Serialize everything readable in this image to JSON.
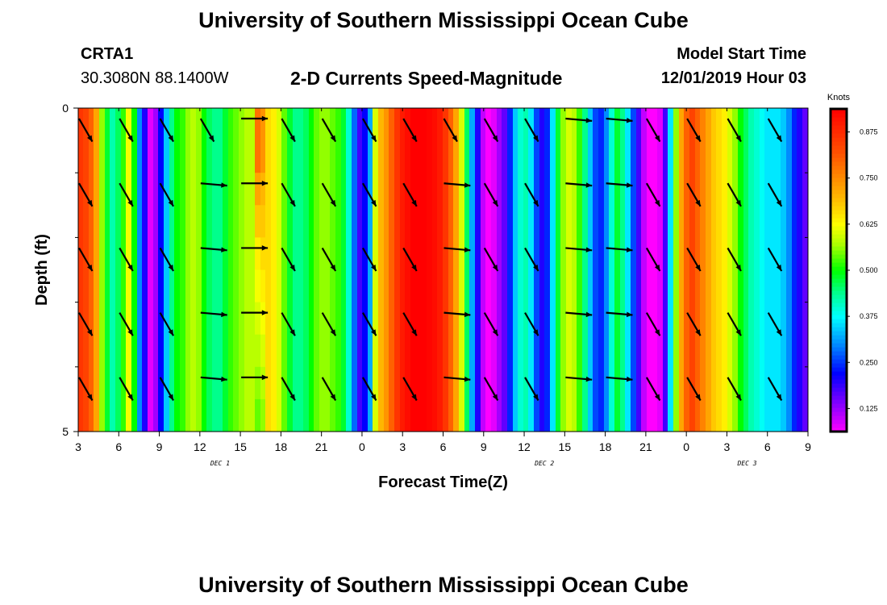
{
  "page": {
    "title_top": "University of Southern Mississippi Ocean Cube",
    "title_bottom": "University of Southern Mississippi Ocean Cube",
    "station": "CRTA1",
    "coords": "30.3080N 88.1400W",
    "subtitle": "2-D Currents Speed-Magnitude",
    "model_label": "Model Start Time",
    "model_time": "12/01/2019 Hour 03"
  },
  "chart_data": {
    "type": "heatmap",
    "title": "2-D Currents Speed-Magnitude",
    "xlabel": "Forecast Time(Z)",
    "ylabel": "Depth (ft)",
    "x_range_hours": [
      0,
      54
    ],
    "y_range_ft": [
      0,
      5
    ],
    "x_ticks": [
      {
        "h": 0,
        "label": "3"
      },
      {
        "h": 3,
        "label": "6"
      },
      {
        "h": 6,
        "label": "9"
      },
      {
        "h": 9,
        "label": "12"
      },
      {
        "h": 12,
        "label": "15"
      },
      {
        "h": 15,
        "label": "18"
      },
      {
        "h": 18,
        "label": "21"
      },
      {
        "h": 21,
        "label": "0"
      },
      {
        "h": 24,
        "label": "3"
      },
      {
        "h": 27,
        "label": "6"
      },
      {
        "h": 30,
        "label": "9"
      },
      {
        "h": 33,
        "label": "12"
      },
      {
        "h": 36,
        "label": "15"
      },
      {
        "h": 39,
        "label": "18"
      },
      {
        "h": 42,
        "label": "21"
      },
      {
        "h": 45,
        "label": "0"
      },
      {
        "h": 48,
        "label": "3"
      },
      {
        "h": 51,
        "label": "6"
      },
      {
        "h": 54,
        "label": "9"
      }
    ],
    "y_ticks": [
      {
        "ft": 0,
        "label": "0"
      },
      {
        "ft": 5,
        "label": "5"
      }
    ],
    "day_labels": [
      {
        "h": 10.5,
        "label": "DEC 1"
      },
      {
        "h": 34.5,
        "label": "DEC 2"
      },
      {
        "h": 49.5,
        "label": "DEC 3"
      }
    ],
    "speed_knots": [
      0.86,
      0.84,
      0.8,
      0.72,
      0.56,
      0.48,
      0.42,
      0.46,
      0.52,
      0.62,
      0.5,
      0.3,
      0.2,
      0.08,
      0.12,
      0.22,
      0.34,
      0.44,
      0.5,
      0.52,
      0.56,
      0.58,
      0.56,
      0.5,
      0.46,
      0.44,
      0.44,
      0.48,
      0.52,
      0.54,
      0.56,
      0.58,
      0.58,
      0.6,
      0.62,
      0.66,
      0.64,
      0.6,
      0.54,
      0.48,
      0.44,
      0.44,
      0.46,
      0.5,
      0.54,
      0.56,
      0.56,
      0.54,
      0.52,
      0.48,
      0.4,
      0.28,
      0.18,
      0.22,
      0.32,
      0.6,
      0.7,
      0.74,
      0.8,
      0.86,
      0.9,
      0.92,
      0.94,
      0.94,
      0.94,
      0.93,
      0.92,
      0.9,
      0.86,
      0.8,
      0.72,
      0.6,
      0.46,
      0.32,
      0.2,
      0.1,
      0.06,
      0.08,
      0.12,
      0.16,
      0.24,
      0.34,
      0.4,
      0.42,
      0.36,
      0.26,
      0.2,
      0.24,
      0.36,
      0.48,
      0.56,
      0.6,
      0.58,
      0.52,
      0.44,
      0.34,
      0.26,
      0.24,
      0.3,
      0.4,
      0.48,
      0.44,
      0.36,
      0.26,
      0.18,
      0.1,
      0.06,
      0.04,
      0.08,
      0.18,
      0.36,
      0.56,
      0.72,
      0.8,
      0.84,
      0.8,
      0.76,
      0.72,
      0.68,
      0.66,
      0.64,
      0.6,
      0.56,
      0.5,
      0.46,
      0.42,
      0.4,
      0.38,
      0.36,
      0.36,
      0.36,
      0.34,
      0.3,
      0.24,
      0.2,
      0.16
    ],
    "column_depth_shift": [
      {
        "col": 33,
        "values": [
          0.78,
          0.78,
          0.72,
          0.68,
          0.64,
          0.62,
          0.6,
          0.58,
          0.56,
          0.54
        ]
      },
      {
        "col": 34,
        "values": [
          0.74,
          0.74,
          0.7,
          0.68,
          0.66,
          0.64,
          0.62,
          0.6,
          0.58,
          0.56
        ]
      }
    ],
    "vectors": {
      "hours": [
        0,
        3,
        6,
        9,
        12,
        15,
        18,
        21,
        24,
        27,
        30,
        33,
        36,
        39,
        42,
        45,
        48,
        51
      ],
      "depth_ft": [
        0.1,
        1.1,
        2.1,
        3.1,
        4.1
      ],
      "direction_deg": [
        [
          150,
          150,
          150,
          150,
          150
        ],
        [
          150,
          150,
          150,
          150,
          150
        ],
        [
          150,
          150,
          150,
          150,
          150
        ],
        [
          150,
          95,
          95,
          95,
          95
        ],
        [
          90,
          90,
          90,
          90,
          90
        ],
        [
          150,
          150,
          150,
          150,
          150
        ],
        [
          150,
          150,
          150,
          150,
          150
        ],
        [
          150,
          150,
          150,
          150,
          150
        ],
        [
          150,
          150,
          150,
          150,
          150
        ],
        [
          150,
          95,
          95,
          95,
          95
        ],
        [
          150,
          150,
          150,
          150,
          150
        ],
        [
          150,
          150,
          150,
          150,
          150
        ],
        [
          95,
          95,
          95,
          95,
          95
        ],
        [
          95,
          95,
          95,
          95,
          95
        ],
        [
          150,
          150,
          150,
          150,
          150
        ],
        [
          150,
          150,
          150,
          150,
          150
        ],
        [
          150,
          150,
          150,
          150,
          150
        ],
        [
          150,
          150,
          150,
          150,
          150
        ]
      ]
    },
    "colorbar": {
      "title": "Knots",
      "min": 0.0625,
      "max": 0.9375,
      "ticks": [
        "0.125",
        "0.250",
        "0.375",
        "0.500",
        "0.625",
        "0.750",
        "0.875"
      ],
      "tick_values": [
        0.125,
        0.25,
        0.375,
        0.5,
        0.625,
        0.75,
        0.875
      ]
    }
  }
}
